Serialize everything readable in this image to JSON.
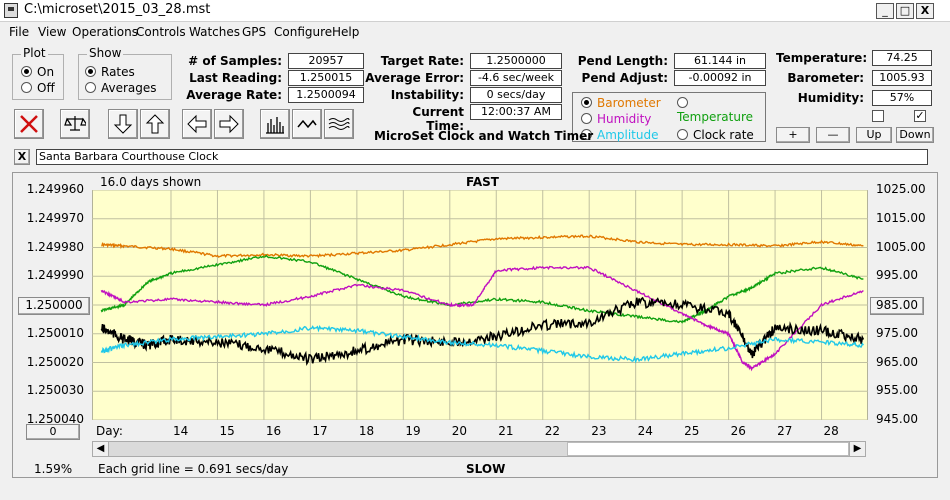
{
  "window": {
    "title": "C:\\microset\\2015_03_28.mst",
    "min": "_",
    "max": "□",
    "close": "X"
  },
  "menu": [
    "File",
    "View",
    "Operations",
    "Controls",
    "Watches",
    "GPS",
    "Configure",
    "Help"
  ],
  "plot_group": {
    "title": "Plot",
    "options": [
      "On",
      "Off"
    ],
    "selected": "On"
  },
  "show_group": {
    "title": "Show",
    "options": [
      "Rates",
      "Averages"
    ],
    "selected": "Rates"
  },
  "stats": {
    "samples_label": "# of Samples:",
    "samples": "20957",
    "last_label": "Last Reading:",
    "last": "1.250015",
    "avg_label": "Average Rate:",
    "avg": "1.2500094",
    "target_label": "Target Rate:",
    "target": "1.2500000",
    "err_label": "Average Error:",
    "err": "-4.6 sec/week",
    "instab_label": "Instability:",
    "instab": "0 secs/day",
    "time_label": "Current Time:",
    "time": "12:00:37 AM",
    "pendlen_label": "Pend Length:",
    "pendlen": "61.144 in",
    "pendadj_label": "Pend Adjust:",
    "pendadj": "-0.00092 in",
    "temp_label": "Temperature:",
    "temp": "74.25",
    "baro_label": "Barometer:",
    "baro": "1005.93",
    "hum_label": "Humidity:",
    "hum": "57%"
  },
  "app_caption": "MicroSet Clock and Watch Timer",
  "sensors": [
    {
      "label": "Barometer",
      "color": "#e07800",
      "selected": true
    },
    {
      "label": "Temperature",
      "color": "#10a010",
      "selected": false
    },
    {
      "label": "Humidity",
      "color": "#c010c0",
      "selected": false
    },
    {
      "label": "Clock rate",
      "color": "#000000",
      "selected": false
    },
    {
      "label": "Amplitude",
      "color": "#20c8e8",
      "selected": false
    }
  ],
  "adjust_buttons": [
    "+",
    "—",
    "Up",
    "Down"
  ],
  "checkbox_right": "✓",
  "clock_name": "Santa Barbara Courthouse Clock",
  "clear_btn": "X",
  "chart": {
    "days_shown": "16.0 days shown",
    "fast": "FAST",
    "slow": "SLOW",
    "grid_note": "Each grid line = 0.691 secs/day",
    "percent": "1.59%",
    "center_left": "1.250000",
    "center_right": "985.00",
    "scroll_value": "0",
    "day_label": "Day:"
  },
  "chart_data": {
    "type": "line",
    "x_label": "Day:",
    "x_ticks": [
      "14",
      "15",
      "16",
      "17",
      "18",
      "19",
      "20",
      "21",
      "22",
      "23",
      "24",
      "25",
      "26",
      "27",
      "28"
    ],
    "y_left_ticks": [
      "1.249960",
      "1.249970",
      "1.249980",
      "1.249990",
      "1.250000",
      "1.250010",
      "1.250020",
      "1.250030",
      "1.250040"
    ],
    "y_right_ticks": [
      "1025.00",
      "1015.00",
      "1005.00",
      "995.00",
      "985.00",
      "975.00",
      "965.00",
      "955.00",
      "945.00"
    ],
    "ylim_left": [
      1.24996,
      1.25004
    ],
    "ylim_right": [
      945,
      1025
    ],
    "grid": true,
    "series": [
      {
        "name": "Barometer",
        "color": "#e07800",
        "axis": "right",
        "x": [
          12.5,
          13,
          14,
          15,
          16,
          17,
          18,
          19,
          20,
          21,
          22,
          23,
          24,
          25,
          26,
          27,
          28,
          28.9
        ],
        "values": [
          1006,
          1005.5,
          1004.5,
          1002,
          1002.5,
          1002,
          1003,
          1004,
          1006,
          1008,
          1008.5,
          1009,
          1007,
          1006,
          1006,
          1005.5,
          1007,
          1005.5
        ]
      },
      {
        "name": "Temperature",
        "color": "#10a010",
        "axis": "right",
        "x": [
          12.5,
          13,
          13.5,
          14,
          15,
          16,
          17,
          18,
          19,
          20,
          21,
          22,
          23,
          24,
          25,
          25.5,
          26,
          26.5,
          27,
          28,
          28.9
        ],
        "values": [
          983,
          985,
          993,
          996,
          999,
          1002,
          1000,
          994,
          988,
          985,
          987,
          986,
          983,
          981,
          979,
          983,
          988,
          991,
          996,
          998,
          994
        ]
      },
      {
        "name": "Humidity",
        "color": "#c010c0",
        "axis": "right",
        "x": [
          12.5,
          13,
          14,
          15,
          16,
          17,
          18,
          19,
          20,
          20.5,
          21,
          22,
          23,
          24,
          25,
          25.5,
          26,
          26.3,
          26.5,
          27,
          28,
          28.9
        ],
        "values": [
          990,
          986,
          987,
          986,
          985,
          988,
          992,
          990,
          985,
          985,
          997,
          998,
          998,
          990,
          982,
          978,
          975,
          965,
          963,
          968,
          985,
          990
        ]
      },
      {
        "name": "Clock rate",
        "color": "#000000",
        "axis": "left",
        "x": [
          12.5,
          13,
          13.5,
          14,
          15,
          16,
          17,
          18,
          19,
          20,
          21,
          22,
          23,
          24,
          25,
          26,
          26.5,
          27,
          28,
          28.9
        ],
        "values": [
          1.250008,
          1.250012,
          1.250014,
          1.250012,
          1.250013,
          1.250015,
          1.250019,
          1.250016,
          1.250012,
          1.250013,
          1.250011,
          1.250007,
          1.250006,
          1.249999,
          1.25,
          1.250003,
          1.250017,
          1.250008,
          1.250009,
          1.250012
        ]
      },
      {
        "name": "Amplitude",
        "color": "#20c8e8",
        "axis": "left",
        "x": [
          12.5,
          13,
          14,
          15,
          16,
          17,
          18,
          19,
          20,
          21,
          22,
          23,
          24,
          25,
          26,
          27,
          28,
          28.9
        ],
        "values": [
          1.250016,
          1.250014,
          1.250012,
          1.250011,
          1.25001,
          1.250008,
          1.250009,
          1.250011,
          1.250013,
          1.250014,
          1.250016,
          1.250018,
          1.250019,
          1.250017,
          1.250015,
          1.250012,
          1.250013,
          1.250014
        ]
      }
    ]
  }
}
